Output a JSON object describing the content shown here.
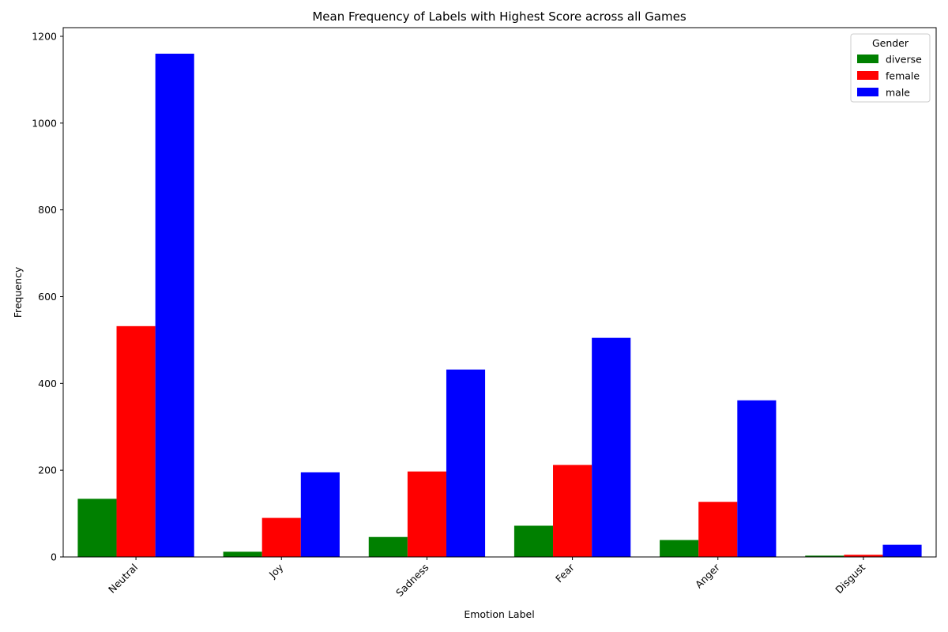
{
  "chart_data": {
    "type": "bar",
    "title": "Mean Frequency of Labels with Highest Score across all Games",
    "xlabel": "Emotion Label",
    "ylabel": "Frequency",
    "categories": [
      "Neutral",
      "Joy",
      "Sadness",
      "Fear",
      "Anger",
      "Disgust"
    ],
    "series": [
      {
        "name": "diverse",
        "color": "#008000",
        "values": [
          134,
          12,
          46,
          72,
          39,
          3
        ]
      },
      {
        "name": "female",
        "color": "#ff0000",
        "values": [
          532,
          90,
          197,
          212,
          127,
          5
        ]
      },
      {
        "name": "male",
        "color": "#0000ff",
        "values": [
          1160,
          195,
          432,
          505,
          361,
          28
        ]
      }
    ],
    "ylim": [
      0,
      1220
    ],
    "yticks": [
      0,
      200,
      400,
      600,
      800,
      1000,
      1200
    ],
    "legend": {
      "title": "Gender",
      "placement": "top-right"
    },
    "grid": false
  }
}
